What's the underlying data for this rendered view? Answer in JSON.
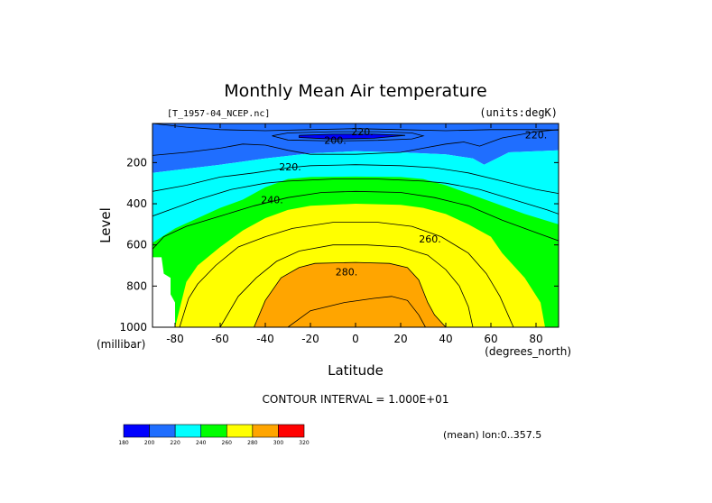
{
  "chart_data": {
    "type": "contour",
    "title": "Monthly Mean Air temperature",
    "dataset": "[T_1957-04_NCEP.nc]",
    "units": "(units:degK)",
    "xlabel": "Latitude",
    "xunits": "(degrees_north)",
    "ylabel": "Level",
    "yunits": "(millibar)",
    "xlim": [
      -90,
      90
    ],
    "ylim": [
      1000,
      10
    ],
    "x_ticks": [
      -80,
      -60,
      -40,
      -20,
      0,
      20,
      40,
      60,
      80
    ],
    "x_tick_labels": [
      "-80",
      "-60",
      "-40",
      "-20",
      "0",
      "20",
      "40",
      "60",
      "80"
    ],
    "y_ticks": [
      200,
      400,
      600,
      800,
      1000
    ],
    "y_tick_labels": [
      "200",
      "400",
      "600",
      "800",
      "1000"
    ],
    "contour_interval_text": "CONTOUR INTERVAL = 1.000E+01",
    "subset_text": "(mean) lon:0..357.5",
    "contour_labels": [
      {
        "text": "200.",
        "lat": -9,
        "level": 90
      },
      {
        "text": "220.",
        "lat": 3,
        "level": 50
      },
      {
        "text": "220.",
        "lat": 80,
        "level": 65
      },
      {
        "text": "220.",
        "lat": -29,
        "level": 220
      },
      {
        "text": "240.",
        "lat": -37,
        "level": 380
      },
      {
        "text": "260.",
        "lat": 33,
        "level": 570
      },
      {
        "text": "280.",
        "lat": -4,
        "level": 730
      }
    ],
    "colorbar": {
      "levels": [
        180,
        200,
        220,
        240,
        260,
        280,
        300,
        320
      ],
      "labels": [
        "180",
        "200",
        "220",
        "240",
        "260",
        "280",
        "300",
        "320"
      ],
      "colors": [
        "#0000ff",
        "#1f6eff",
        "#00ffff",
        "#00ff00",
        "#ffff00",
        "#ffa500",
        "#ff0000"
      ]
    },
    "bands": [
      {
        "t_low": 200,
        "color": "#1f6eff",
        "outline": [
          [
            -90,
            10
          ],
          [
            90,
            10
          ],
          [
            90,
            140
          ],
          [
            68,
            150
          ],
          [
            57,
            210
          ],
          [
            52,
            180
          ],
          [
            40,
            160
          ],
          [
            20,
            150
          ],
          [
            0,
            145
          ],
          [
            -20,
            155
          ],
          [
            -40,
            180
          ],
          [
            -60,
            210
          ],
          [
            -75,
            230
          ],
          [
            -90,
            250
          ]
        ]
      },
      {
        "t_low": 220,
        "color": "#00ffff",
        "outline": [
          [
            -90,
            250
          ],
          [
            -75,
            230
          ],
          [
            -60,
            210
          ],
          [
            -40,
            180
          ],
          [
            -20,
            155
          ],
          [
            0,
            145
          ],
          [
            20,
            150
          ],
          [
            40,
            160
          ],
          [
            52,
            180
          ],
          [
            57,
            210
          ],
          [
            68,
            150
          ],
          [
            90,
            140
          ],
          [
            90,
            1000
          ],
          [
            -90,
            1000
          ]
        ]
      },
      {
        "t_low": 240,
        "color": "#00ff00",
        "outline": [
          [
            -90,
            590
          ],
          [
            -80,
            520
          ],
          [
            -70,
            470
          ],
          [
            -60,
            420
          ],
          [
            -50,
            380
          ],
          [
            -40,
            320
          ],
          [
            -30,
            280
          ],
          [
            -20,
            270
          ],
          [
            0,
            268
          ],
          [
            20,
            270
          ],
          [
            30,
            280
          ],
          [
            40,
            310
          ],
          [
            50,
            350
          ],
          [
            60,
            390
          ],
          [
            75,
            450
          ],
          [
            90,
            500
          ],
          [
            90,
            1000
          ],
          [
            -90,
            1000
          ]
        ]
      },
      {
        "t_low": 250,
        "color": "#00ff00",
        "outline": [
          [
            -90,
            1000
          ],
          [
            -90,
            1000
          ]
        ]
      },
      {
        "t_low": 260,
        "color": "#ffff00",
        "outline": [
          [
            -80,
            1000
          ],
          [
            -75,
            780
          ],
          [
            -70,
            700
          ],
          [
            -60,
            610
          ],
          [
            -50,
            530
          ],
          [
            -40,
            470
          ],
          [
            -30,
            430
          ],
          [
            -20,
            410
          ],
          [
            0,
            400
          ],
          [
            20,
            405
          ],
          [
            30,
            420
          ],
          [
            40,
            450
          ],
          [
            50,
            500
          ],
          [
            60,
            560
          ],
          [
            65,
            640
          ],
          [
            75,
            760
          ],
          [
            82,
            880
          ],
          [
            84,
            1000
          ]
        ]
      },
      {
        "t_low": 280,
        "color": "#ffa500",
        "outline": [
          [
            -45,
            1000
          ],
          [
            -40,
            870
          ],
          [
            -33,
            760
          ],
          [
            -25,
            710
          ],
          [
            -18,
            690
          ],
          [
            0,
            685
          ],
          [
            15,
            690
          ],
          [
            23,
            710
          ],
          [
            28,
            770
          ],
          [
            32,
            880
          ],
          [
            35,
            940
          ],
          [
            40,
            1000
          ]
        ]
      }
    ],
    "contour_lines": [
      {
        "t": 200,
        "points": [
          [
            -37,
            70
          ],
          [
            -30,
            56
          ],
          [
            -10,
            50
          ],
          [
            10,
            50
          ],
          [
            25,
            56
          ],
          [
            30,
            70
          ],
          [
            25,
            85
          ],
          [
            10,
            92
          ],
          [
            -10,
            95
          ],
          [
            -30,
            90
          ],
          [
            -37,
            70
          ]
        ]
      },
      {
        "t": 200,
        "points": [
          [
            -25,
            68
          ],
          [
            -10,
            62
          ],
          [
            8,
            62
          ],
          [
            22,
            68
          ],
          [
            8,
            82
          ],
          [
            -10,
            86
          ],
          [
            -25,
            78
          ],
          [
            -25,
            68
          ]
        ]
      },
      {
        "t": 220,
        "points": [
          [
            -90,
            10
          ],
          [
            -75,
            28
          ],
          [
            -60,
            40
          ],
          [
            -40,
            45
          ],
          [
            -20,
            40
          ],
          [
            0,
            35
          ],
          [
            20,
            40
          ],
          [
            40,
            45
          ],
          [
            60,
            40
          ],
          [
            80,
            40
          ],
          [
            90,
            42
          ]
        ]
      },
      {
        "t": 220,
        "points": [
          [
            -90,
            165
          ],
          [
            -75,
            150
          ],
          [
            -60,
            130
          ],
          [
            -50,
            110
          ],
          [
            -40,
            115
          ],
          [
            -30,
            140
          ],
          [
            -20,
            160
          ],
          [
            0,
            160
          ],
          [
            20,
            150
          ],
          [
            30,
            130
          ],
          [
            40,
            110
          ],
          [
            48,
            100
          ],
          [
            55,
            120
          ],
          [
            65,
            80
          ],
          [
            80,
            50
          ],
          [
            90,
            40
          ]
        ]
      },
      {
        "t": 230,
        "points": [
          [
            -90,
            340
          ],
          [
            -75,
            310
          ],
          [
            -60,
            270
          ],
          [
            -45,
            250
          ],
          [
            -30,
            225
          ],
          [
            -20,
            215
          ],
          [
            0,
            210
          ],
          [
            20,
            215
          ],
          [
            35,
            225
          ],
          [
            50,
            250
          ],
          [
            65,
            290
          ],
          [
            80,
            330
          ],
          [
            90,
            350
          ]
        ]
      },
      {
        "t": 240,
        "points": [
          [
            -90,
            460
          ],
          [
            -80,
            420
          ],
          [
            -70,
            380
          ],
          [
            -55,
            330
          ],
          [
            -40,
            300
          ],
          [
            -30,
            290
          ],
          [
            -10,
            280
          ],
          [
            10,
            280
          ],
          [
            30,
            290
          ],
          [
            40,
            300
          ],
          [
            55,
            330
          ],
          [
            70,
            380
          ],
          [
            85,
            430
          ],
          [
            90,
            450
          ]
        ]
      },
      {
        "t": 250,
        "points": [
          [
            -90,
            620
          ],
          [
            -85,
            560
          ],
          [
            -75,
            510
          ],
          [
            -60,
            460
          ],
          [
            -45,
            410
          ],
          [
            -30,
            370
          ],
          [
            -15,
            345
          ],
          [
            0,
            340
          ],
          [
            20,
            345
          ],
          [
            35,
            370
          ],
          [
            50,
            410
          ],
          [
            65,
            480
          ],
          [
            80,
            540
          ],
          [
            90,
            580
          ]
        ]
      },
      {
        "t": 260,
        "points": [
          [
            -78,
            1000
          ],
          [
            -74,
            860
          ],
          [
            -70,
            790
          ],
          [
            -62,
            700
          ],
          [
            -52,
            610
          ],
          [
            -40,
            560
          ],
          [
            -28,
            520
          ],
          [
            -10,
            490
          ],
          [
            10,
            490
          ],
          [
            25,
            510
          ],
          [
            38,
            560
          ],
          [
            50,
            640
          ],
          [
            58,
            740
          ],
          [
            64,
            850
          ],
          [
            70,
            1000
          ]
        ]
      },
      {
        "t": 270,
        "points": [
          [
            -60,
            1000
          ],
          [
            -52,
            850
          ],
          [
            -44,
            760
          ],
          [
            -35,
            680
          ],
          [
            -25,
            630
          ],
          [
            -10,
            600
          ],
          [
            5,
            600
          ],
          [
            20,
            610
          ],
          [
            32,
            650
          ],
          [
            40,
            720
          ],
          [
            46,
            800
          ],
          [
            50,
            900
          ],
          [
            52,
            1000
          ]
        ]
      },
      {
        "t": 280,
        "points": [
          [
            -45,
            1000
          ],
          [
            -40,
            870
          ],
          [
            -33,
            760
          ],
          [
            -25,
            710
          ],
          [
            -18,
            690
          ],
          [
            0,
            685
          ],
          [
            15,
            690
          ],
          [
            23,
            710
          ],
          [
            28,
            770
          ],
          [
            32,
            880
          ],
          [
            35,
            940
          ],
          [
            40,
            1000
          ]
        ]
      },
      {
        "t": 290,
        "points": [
          [
            -30,
            1000
          ],
          [
            -20,
            920
          ],
          [
            -5,
            880
          ],
          [
            8,
            860
          ],
          [
            16,
            850
          ],
          [
            23,
            870
          ],
          [
            28,
            940
          ],
          [
            31,
            1000
          ]
        ]
      }
    ],
    "missing_region": [
      [
        -90,
        660
      ],
      [
        -86,
        660
      ],
      [
        -85,
        740
      ],
      [
        -82,
        760
      ],
      [
        -82,
        840
      ],
      [
        -80,
        880
      ],
      [
        -80,
        1000
      ],
      [
        -90,
        1000
      ]
    ]
  }
}
